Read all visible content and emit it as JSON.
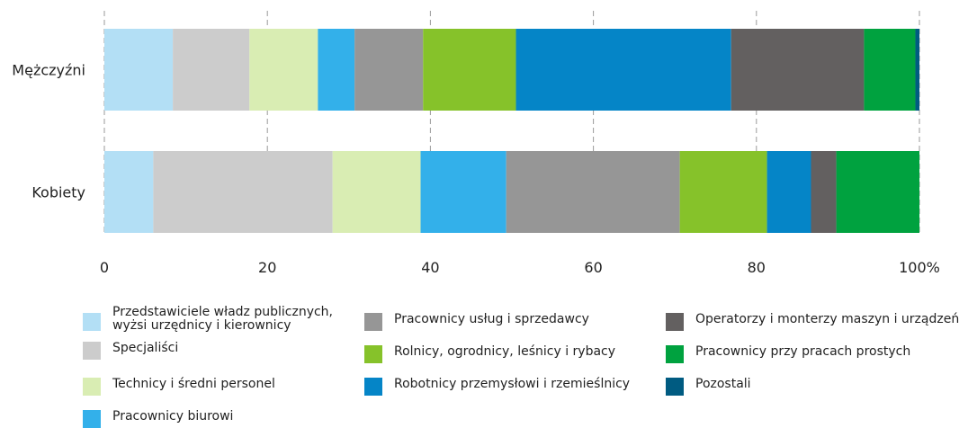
{
  "chart_data": {
    "type": "bar",
    "orientation": "horizontal",
    "stacked": true,
    "title": "",
    "xlabel": "",
    "ylabel": "",
    "categories": [
      "Mężczyźni",
      "Kobiety"
    ],
    "x_ticks": [
      "0",
      "20",
      "40",
      "60",
      "80",
      "100%"
    ],
    "xlim": [
      0,
      100
    ],
    "grid": "vertical dashed",
    "legend_position": "bottom",
    "series": [
      {
        "name": "Przedstawiciele władz publicznych,\nwyżsi urzędnicy i kierownicy",
        "color": "#b3dff5",
        "values": [
          8.4,
          6.0
        ]
      },
      {
        "name": "Specjaliści",
        "color": "#cccccc",
        "values": [
          9.4,
          22.0
        ]
      },
      {
        "name": "Technicy i średni personel",
        "color": "#d9edb3",
        "values": [
          8.4,
          10.8
        ]
      },
      {
        "name": "Pracownicy biurowi",
        "color": "#33b0ea",
        "values": [
          4.5,
          10.5
        ]
      },
      {
        "name": "Pracownicy usług i sprzedawcy",
        "color": "#969696",
        "values": [
          8.4,
          21.3
        ]
      },
      {
        "name": "Rolnicy, ogrodnicy, leśnicy i rybacy",
        "color": "#86c22a",
        "values": [
          11.4,
          10.7
        ]
      },
      {
        "name": "Robotnicy przemysłowi i rzemieślnicy",
        "color": "#0585c7",
        "values": [
          26.4,
          5.4
        ]
      },
      {
        "name": "Operatorzy i monterzy maszyn i urządzeń",
        "color": "#636060",
        "values": [
          16.3,
          3.1
        ]
      },
      {
        "name": "Pracownicy przy pracach prostych",
        "color": "#00a23f",
        "values": [
          6.3,
          10.2
        ]
      },
      {
        "name": "Pozostali",
        "color": "#005b81",
        "values": [
          0.5,
          0.0
        ]
      }
    ]
  }
}
